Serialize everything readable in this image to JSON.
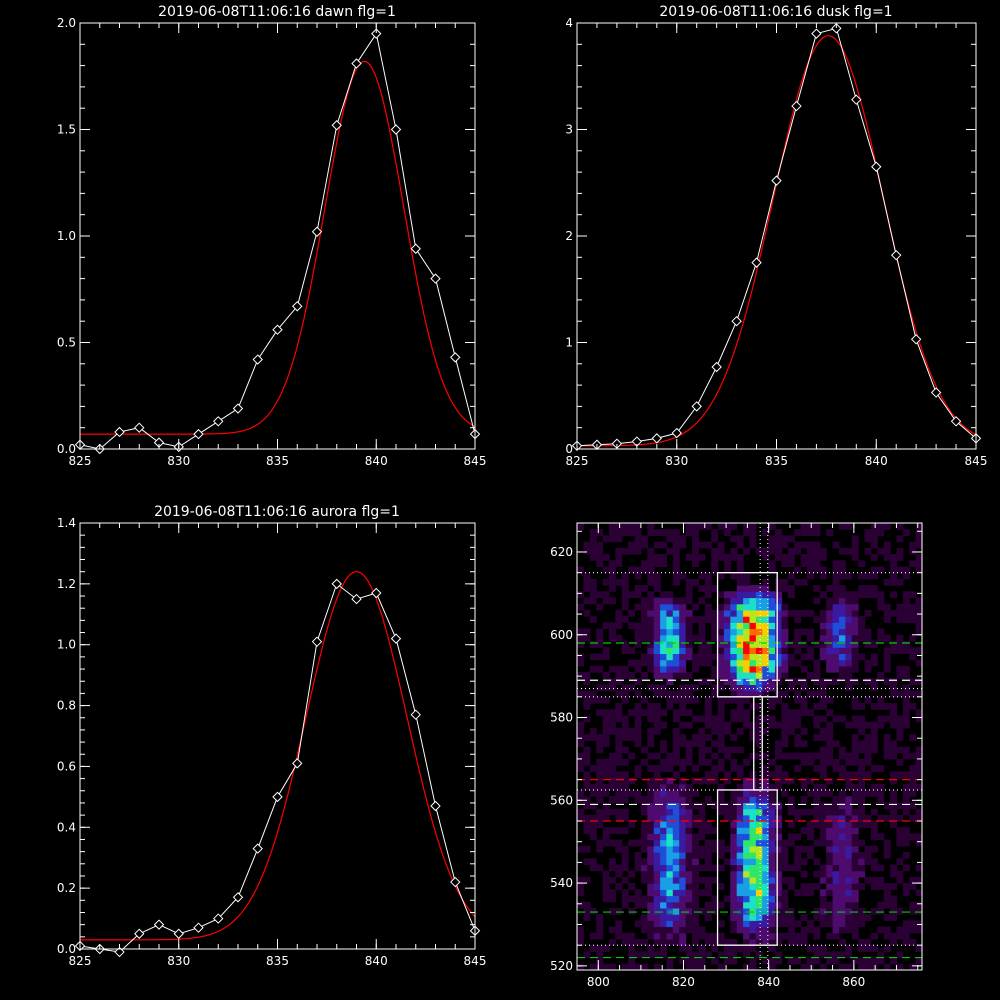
{
  "chart_data": [
    {
      "type": "line",
      "title": "2019-06-08T11:06:16 dawn flg=1",
      "xlim": [
        825,
        845
      ],
      "ylim": [
        0,
        2.0
      ],
      "xticks": [
        825,
        830,
        835,
        840,
        845
      ],
      "xtick_labels": [
        "825",
        "830",
        "835",
        "840",
        "845"
      ],
      "yticks": [
        0,
        0.5,
        1.0,
        1.5,
        2.0
      ],
      "ytick_labels": [
        "0.0",
        "0.5",
        "1.0",
        "1.5",
        "2.0"
      ],
      "series": [
        {
          "kind": "data",
          "color": "#ffffff",
          "marker": "diamond",
          "x": [
            825,
            826,
            827,
            828,
            829,
            830,
            831,
            832,
            833,
            834,
            835,
            836,
            837,
            838,
            839,
            840,
            841,
            842,
            843,
            844,
            845
          ],
          "y": [
            0.02,
            0.0,
            0.08,
            0.1,
            0.03,
            0.01,
            0.07,
            0.13,
            0.19,
            0.42,
            0.56,
            0.67,
            1.02,
            1.52,
            1.81,
            1.95,
            1.5,
            0.94,
            0.8,
            0.43,
            0.07
          ]
        },
        {
          "kind": "fit",
          "color": "#ff0000",
          "model": "gaussian",
          "amplitude": 1.75,
          "center": 839.4,
          "sigma": 2.0,
          "baseline": 0.07
        }
      ]
    },
    {
      "type": "line",
      "title": "2019-06-08T11:06:16 dusk flg=1",
      "xlim": [
        825,
        845
      ],
      "ylim": [
        0,
        4
      ],
      "xticks": [
        825,
        830,
        835,
        840,
        845
      ],
      "xtick_labels": [
        "825",
        "830",
        "835",
        "840",
        "845"
      ],
      "yticks": [
        0,
        1,
        2,
        3,
        4
      ],
      "ytick_labels": [
        "0",
        "1",
        "2",
        "3",
        "4"
      ],
      "series": [
        {
          "kind": "data",
          "color": "#ffffff",
          "marker": "diamond",
          "x": [
            825,
            826,
            827,
            828,
            829,
            830,
            831,
            832,
            833,
            834,
            835,
            836,
            837,
            838,
            839,
            840,
            841,
            842,
            843,
            844,
            845
          ],
          "y": [
            0.03,
            0.04,
            0.05,
            0.07,
            0.1,
            0.15,
            0.4,
            0.77,
            1.2,
            1.75,
            2.52,
            3.22,
            3.9,
            3.95,
            3.28,
            2.65,
            1.82,
            1.03,
            0.53,
            0.26,
            0.1
          ]
        },
        {
          "kind": "fit",
          "color": "#ff0000",
          "model": "gaussian",
          "amplitude": 3.85,
          "center": 837.6,
          "sigma": 2.75,
          "baseline": 0.03
        }
      ]
    },
    {
      "type": "line",
      "title": "2019-06-08T11:06:16 aurora flg=1",
      "xlim": [
        825,
        845
      ],
      "ylim": [
        0,
        1.4
      ],
      "xticks": [
        825,
        830,
        835,
        840,
        845
      ],
      "xtick_labels": [
        "825",
        "830",
        "835",
        "840",
        "845"
      ],
      "yticks": [
        0,
        0.2,
        0.4,
        0.6,
        0.8,
        1.0,
        1.2,
        1.4
      ],
      "ytick_labels": [
        "0.0",
        "0.2",
        "0.4",
        "0.6",
        "0.8",
        "1.0",
        "1.2",
        "1.4"
      ],
      "series": [
        {
          "kind": "data",
          "color": "#ffffff",
          "marker": "diamond",
          "x": [
            825,
            826,
            827,
            828,
            829,
            830,
            831,
            832,
            833,
            834,
            835,
            836,
            837,
            838,
            839,
            840,
            841,
            842,
            843,
            844,
            845
          ],
          "y": [
            0.01,
            0.0,
            -0.01,
            0.05,
            0.08,
            0.05,
            0.07,
            0.1,
            0.17,
            0.33,
            0.5,
            0.61,
            1.01,
            1.2,
            1.15,
            1.17,
            1.02,
            0.77,
            0.47,
            0.22,
            0.06
          ]
        },
        {
          "kind": "fit",
          "color": "#ff0000",
          "model": "gaussian",
          "amplitude": 1.21,
          "center": 839.0,
          "sigma": 2.55,
          "baseline": 0.03
        }
      ]
    },
    {
      "type": "heatmap",
      "xlim": [
        795,
        876
      ],
      "ylim": [
        519,
        627
      ],
      "xticks": [
        800,
        820,
        840,
        860
      ],
      "xtick_labels": [
        "800",
        "820",
        "840",
        "860"
      ],
      "yticks": [
        520,
        540,
        560,
        580,
        600,
        620
      ],
      "ytick_labels": [
        "520",
        "540",
        "560",
        "580",
        "600",
        "620"
      ],
      "colormap": [
        "#000000",
        "#2a0035",
        "#4e0b6e",
        "#3a1aa0",
        "#1f4fd8",
        "#1a9fe6",
        "#1de0c8",
        "#2ee66a",
        "#b8e61e",
        "#f5d000",
        "#ff6a00",
        "#ff0000"
      ],
      "blobs": [
        {
          "x0": 812,
          "x1": 820,
          "y0": 589,
          "y1": 608,
          "peak": 0.55
        },
        {
          "x0": 829,
          "x1": 842,
          "y0": 586,
          "y1": 610,
          "peak": 1.0
        },
        {
          "x0": 852,
          "x1": 860,
          "y0": 590,
          "y1": 608,
          "peak": 0.3
        },
        {
          "x0": 811,
          "x1": 821,
          "y0": 526,
          "y1": 563,
          "peak": 0.4
        },
        {
          "x0": 831,
          "x1": 841,
          "y0": 526,
          "y1": 563,
          "peak": 0.65
        },
        {
          "x0": 852,
          "x1": 861,
          "y0": 527,
          "y1": 561,
          "peak": 0.18
        }
      ],
      "boxes": [
        {
          "x0": 828,
          "x1": 842,
          "y0": 585,
          "y1": 615,
          "color": "#ffffff"
        },
        {
          "x0": 828,
          "x1": 842,
          "y0": 525,
          "y1": 562.5,
          "color": "#ffffff"
        }
      ],
      "connector": {
        "x0": 836.5,
        "x1": 838.5,
        "y0": 562.5,
        "y1": 585
      },
      "vlines_dotted": [
        {
          "x": 838,
          "color": "#ffffff"
        },
        {
          "x": 839.8,
          "color": "#ffffff"
        }
      ],
      "hlines": [
        {
          "y": 615,
          "color": "#ffffff",
          "style": "dotted"
        },
        {
          "y": 598,
          "color": "#00cc00",
          "style": "dashed"
        },
        {
          "y": 589,
          "color": "#ffffff",
          "style": "dashed"
        },
        {
          "y": 587,
          "color": "#ffffff",
          "style": "dotted"
        },
        {
          "y": 585,
          "color": "#ffffff",
          "style": "dotted"
        },
        {
          "y": 565,
          "color": "#ff0000",
          "style": "dashed"
        },
        {
          "y": 562.5,
          "color": "#ffffff",
          "style": "dotted"
        },
        {
          "y": 559,
          "color": "#ffffff",
          "style": "dashed"
        },
        {
          "y": 555,
          "color": "#ff0000",
          "style": "dashed"
        },
        {
          "y": 533,
          "color": "#00cc00",
          "style": "dashed"
        },
        {
          "y": 525,
          "color": "#ffffff",
          "style": "dotted"
        },
        {
          "y": 522,
          "color": "#00cc00",
          "style": "dashed"
        }
      ]
    }
  ]
}
